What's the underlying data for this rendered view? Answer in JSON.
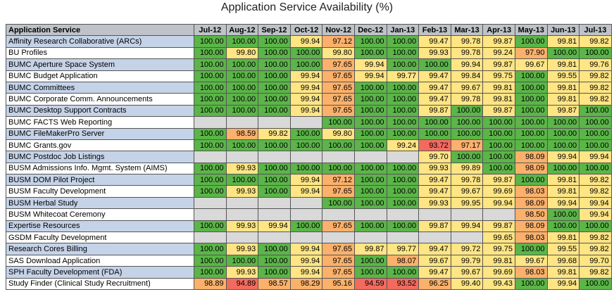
{
  "chart_data": {
    "type": "table",
    "title": "Application Service Availability (%)",
    "row_header": "Application Service",
    "columns": [
      "Jul-12",
      "Aug-12",
      "Sep-12",
      "Oct-12",
      "Nov-12",
      "Dec-12",
      "Jan-13",
      "Feb-13",
      "Mar-13",
      "Apr-13",
      "May-13",
      "Jun-13",
      "Jul-13"
    ],
    "rows": [
      {
        "service": "Affinity Research Collaborative (ARCs)",
        "values": [
          "100.00",
          "100.00",
          "100.00",
          "99.94",
          "97.12",
          "100.00",
          "100.00",
          "99.47",
          "99.78",
          "99.87",
          "100.00",
          "99.81",
          "99.82"
        ]
      },
      {
        "service": "BU Profiles",
        "values": [
          "100.00",
          "99.80",
          "100.00",
          "100.00",
          "99.80",
          "100.00",
          "100.00",
          "99.93",
          "99.78",
          "99.24",
          "97.90",
          "100.00",
          "100.00"
        ]
      },
      {
        "service": "BUMC Aperture Space System",
        "values": [
          "100.00",
          "100.00",
          "100.00",
          "100.00",
          "97.65",
          "99.94",
          "100.00",
          "100.00",
          "99.94",
          "99.87",
          "99.67",
          "99.81",
          "99.76"
        ]
      },
      {
        "service": "BUMC Budget Application",
        "values": [
          "100.00",
          "100.00",
          "100.00",
          "99.94",
          "97.65",
          "99.94",
          "99.77",
          "99.47",
          "99.84",
          "99.75",
          "100.00",
          "99.55",
          "99.82"
        ]
      },
      {
        "service": "BUMC Committees",
        "values": [
          "100.00",
          "100.00",
          "100.00",
          "99.94",
          "97.65",
          "100.00",
          "100.00",
          "99.47",
          "99.67",
          "99.81",
          "100.00",
          "99.81",
          "99.82"
        ]
      },
      {
        "service": "BUMC Corporate Comm. Announcements",
        "values": [
          "100.00",
          "100.00",
          "100.00",
          "99.94",
          "97.65",
          "100.00",
          "100.00",
          "99.47",
          "99.78",
          "99.81",
          "100.00",
          "99.81",
          "99.82"
        ]
      },
      {
        "service": "BUMC Desktop Support Contracts",
        "values": [
          "100.00",
          "100.00",
          "100.00",
          "99.94",
          "97.65",
          "100.00",
          "100.00",
          "99.87",
          "100.00",
          "99.87",
          "100.00",
          "99.87",
          "100.00"
        ]
      },
      {
        "service": "BUMC FACTS Web Reporting",
        "values": [
          "",
          "",
          "",
          "",
          "100.00",
          "100.00",
          "100.00",
          "100.00",
          "100.00",
          "100.00",
          "100.00",
          "100.00",
          "100.00"
        ]
      },
      {
        "service": "BUMC FileMakerPro Server",
        "values": [
          "100.00",
          "98.59",
          "99.82",
          "100.00",
          "99.80",
          "100.00",
          "100.00",
          "100.00",
          "100.00",
          "100.00",
          "100.00",
          "100.00",
          "100.00"
        ]
      },
      {
        "service": "BUMC Grants.gov",
        "values": [
          "100.00",
          "100.00",
          "100.00",
          "100.00",
          "100.00",
          "100.00",
          "99.24",
          "93.72",
          "97.17",
          "100.00",
          "100.00",
          "100.00",
          "100.00"
        ]
      },
      {
        "service": "BUMC Postdoc Job Listings",
        "values": [
          "",
          "",
          "",
          "",
          "",
          "",
          "",
          "99.70",
          "100.00",
          "100.00",
          "98.09",
          "99.94",
          "99.94"
        ]
      },
      {
        "service": "BUSM Admissions Info. Mgmt. System (AIMS)",
        "values": [
          "100.00",
          "99.93",
          "100.00",
          "100.00",
          "100.00",
          "100.00",
          "100.00",
          "99.93",
          "99.89",
          "100.00",
          "98.09",
          "100.00",
          "100.00"
        ]
      },
      {
        "service": "BUSM DOM Pilot Project",
        "values": [
          "100.00",
          "100.00",
          "100.00",
          "99.94",
          "97.12",
          "100.00",
          "100.00",
          "99.47",
          "99.78",
          "99.87",
          "100.00",
          "99.81",
          "99.82"
        ]
      },
      {
        "service": "BUSM Faculty Development",
        "values": [
          "100.00",
          "99.93",
          "100.00",
          "99.94",
          "97.65",
          "100.00",
          "100.00",
          "99.47",
          "99.67",
          "99.69",
          "98.03",
          "99.81",
          "99.82"
        ]
      },
      {
        "service": "BUSM Herbal Study",
        "values": [
          "",
          "",
          "",
          "",
          "100.00",
          "100.00",
          "100.00",
          "99.93",
          "99.95",
          "99.94",
          "98.09",
          "99.94",
          "99.94"
        ]
      },
      {
        "service": "BUSM Whitecoat Ceremony",
        "values": [
          "",
          "",
          "",
          "",
          "",
          "",
          "",
          "",
          "",
          "",
          "98.50",
          "100.00",
          "99.94"
        ]
      },
      {
        "service": "Expertise Resources",
        "values": [
          "100.00",
          "99.93",
          "99.94",
          "100.00",
          "97.65",
          "100.00",
          "100.00",
          "99.87",
          "99.94",
          "99.87",
          "98.09",
          "100.00",
          "100.00"
        ]
      },
      {
        "service": "GSDM Faculty Development",
        "values": [
          "",
          "",
          "",
          "",
          "",
          "",
          "",
          "",
          "",
          "99.65",
          "98.03",
          "99.81",
          "99.82"
        ]
      },
      {
        "service": "Research Cores Billing",
        "values": [
          "100.00",
          "99.93",
          "100.00",
          "99.94",
          "97.65",
          "99.87",
          "99.77",
          "99.47",
          "99.72",
          "99.75",
          "100.00",
          "99.55",
          "99.82"
        ]
      },
      {
        "service": "SAS Download Application",
        "values": [
          "100.00",
          "100.00",
          "100.00",
          "99.94",
          "97.65",
          "100.00",
          "98.07",
          "99.67",
          "99.79",
          "99.81",
          "99.67",
          "99.68",
          "99.70"
        ]
      },
      {
        "service": "SPH Faculty Development (FDA)",
        "values": [
          "100.00",
          "99.93",
          "100.00",
          "99.94",
          "97.65",
          "100.00",
          "100.00",
          "99.47",
          "99.67",
          "99.69",
          "98.03",
          "99.81",
          "99.82"
        ]
      },
      {
        "service": "Study Finder (Clinical Study Recruitment)",
        "values": [
          "98.89",
          "94.89",
          "98.57",
          "98.29",
          "95.16",
          "94.59",
          "93.52",
          "96.25",
          "99.40",
          "99.43",
          "100.00",
          "99.94",
          "100.00"
        ]
      }
    ],
    "colors": {
      "header_bg": "#bfc3c9",
      "service_bg_alt": "#c5d3e8",
      "service_bg": "#ffffff",
      "empty_cell": "#d9d9d9",
      "perfect": "#5bb548",
      "high": "#ffe584",
      "medium": "#fbb16b",
      "low": "#f36a5f"
    }
  }
}
